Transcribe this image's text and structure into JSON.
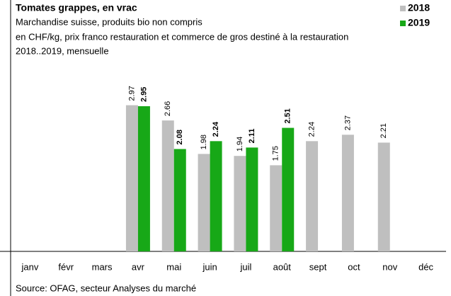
{
  "chart_data": {
    "type": "bar",
    "title": "Tomates grappes, en vrac",
    "subtitle": [
      "Marchandise suisse, produits bio non compris",
      "en CHF/kg, prix franco restauration et commerce de gros destiné à la restauration",
      "2018..2019, mensuelle"
    ],
    "source": "Source: OFAG, secteur Analyses du marché",
    "categories": [
      "janv",
      "févr",
      "mars",
      "avr",
      "mai",
      "juin",
      "juil",
      "août",
      "sept",
      "oct",
      "nov",
      "déc"
    ],
    "series": [
      {
        "name": "2018",
        "color": "#bfbfbf",
        "values": [
          null,
          null,
          null,
          2.97,
          2.66,
          1.98,
          1.94,
          1.75,
          2.24,
          2.37,
          2.21,
          null
        ]
      },
      {
        "name": "2019",
        "color": "#17a817",
        "values": [
          null,
          null,
          null,
          2.95,
          2.08,
          2.24,
          2.11,
          2.51,
          null,
          null,
          null,
          null
        ]
      }
    ],
    "ylim": [
      0,
      4
    ]
  }
}
